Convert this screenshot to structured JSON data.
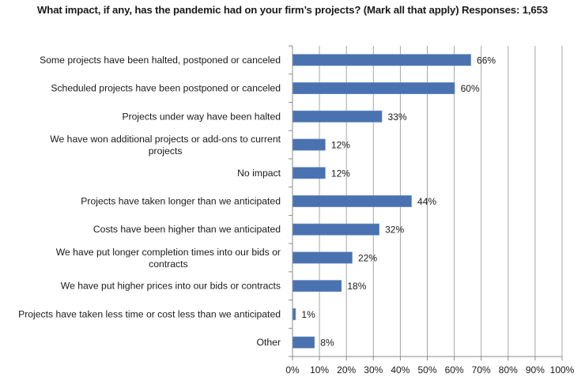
{
  "chart_data": {
    "type": "bar",
    "orientation": "horizontal",
    "title": "What impact, if any, has the pandemic had on your firm’s projects? (Mark all that apply) Responses: 1,653",
    "xlabel": "",
    "ylabel": "",
    "categories": [
      [
        "Some projects have been halted, postponed or canceled"
      ],
      [
        "Scheduled projects have been postponed or canceled"
      ],
      [
        "Projects under way have been halted"
      ],
      [
        "We have won additional projects or add-ons to current",
        "projects"
      ],
      [
        "No impact"
      ],
      [
        "Projects have taken longer than we anticipated"
      ],
      [
        "Costs have been higher than we anticipated"
      ],
      [
        "We have put longer completion times into our bids or",
        "contracts"
      ],
      [
        "We have put higher prices into our bids or contracts"
      ],
      [
        "Projects have taken less time or cost less than we anticipated"
      ],
      [
        "Other"
      ]
    ],
    "values": [
      66,
      60,
      33,
      12,
      12,
      44,
      32,
      22,
      18,
      1,
      8
    ],
    "value_labels": [
      "66%",
      "60%",
      "33%",
      "12%",
      "12%",
      "44%",
      "32%",
      "22%",
      "18%",
      "1%",
      "8%"
    ],
    "xlim": [
      0,
      100
    ],
    "xticks": [
      0,
      10,
      20,
      30,
      40,
      50,
      60,
      70,
      80,
      90,
      100
    ],
    "xtick_labels": [
      "0%",
      "10%",
      "20%",
      "30%",
      "40%",
      "50%",
      "60%",
      "70%",
      "80%",
      "90%",
      "100%"
    ],
    "grid": "vertical",
    "legend": "none",
    "bar_color": "#4a72b0",
    "grid_color": "#a6a6a6"
  }
}
